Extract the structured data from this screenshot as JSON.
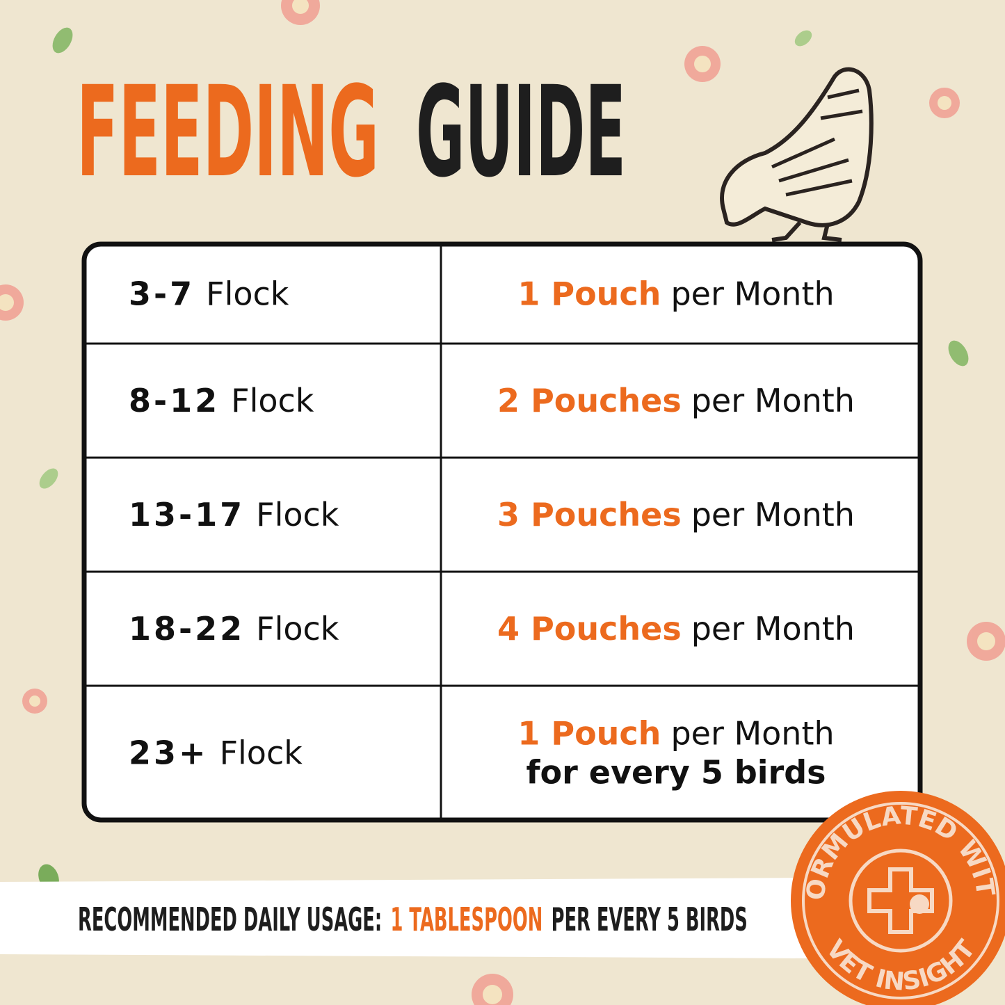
{
  "title": {
    "accent": "FEEDING",
    "main": "GUIDE"
  },
  "table": {
    "rows": [
      {
        "flock": {
          "count": "3-7",
          "label": "Flock"
        },
        "amount": {
          "quantity": "1 Pouch",
          "rest": "per Month"
        }
      },
      {
        "flock": {
          "count": "8-12",
          "label": "Flock"
        },
        "amount": {
          "quantity": "2 Pouches",
          "rest": "per Month"
        }
      },
      {
        "flock": {
          "count": "13-17",
          "label": "Flock"
        },
        "amount": {
          "quantity": "3 Pouches",
          "rest": "per Month"
        }
      },
      {
        "flock": {
          "count": "18-22",
          "label": "Flock"
        },
        "amount": {
          "quantity": "4 Pouches",
          "rest": "per Month"
        }
      },
      {
        "flock": {
          "count": "23+",
          "label": "Flock"
        },
        "amount": {
          "quantity": "1 Pouch",
          "rest": "per Month",
          "note": "for every 5 birds"
        }
      }
    ]
  },
  "footer": {
    "label": "RECOMMENDED DAILY USAGE:",
    "amount": "1 TABLESPOON",
    "rest": "PER EVERY 5 BIRDS"
  },
  "badge": {
    "top": "FORMULATED WITH",
    "bottom": "VET INSIGHT"
  }
}
